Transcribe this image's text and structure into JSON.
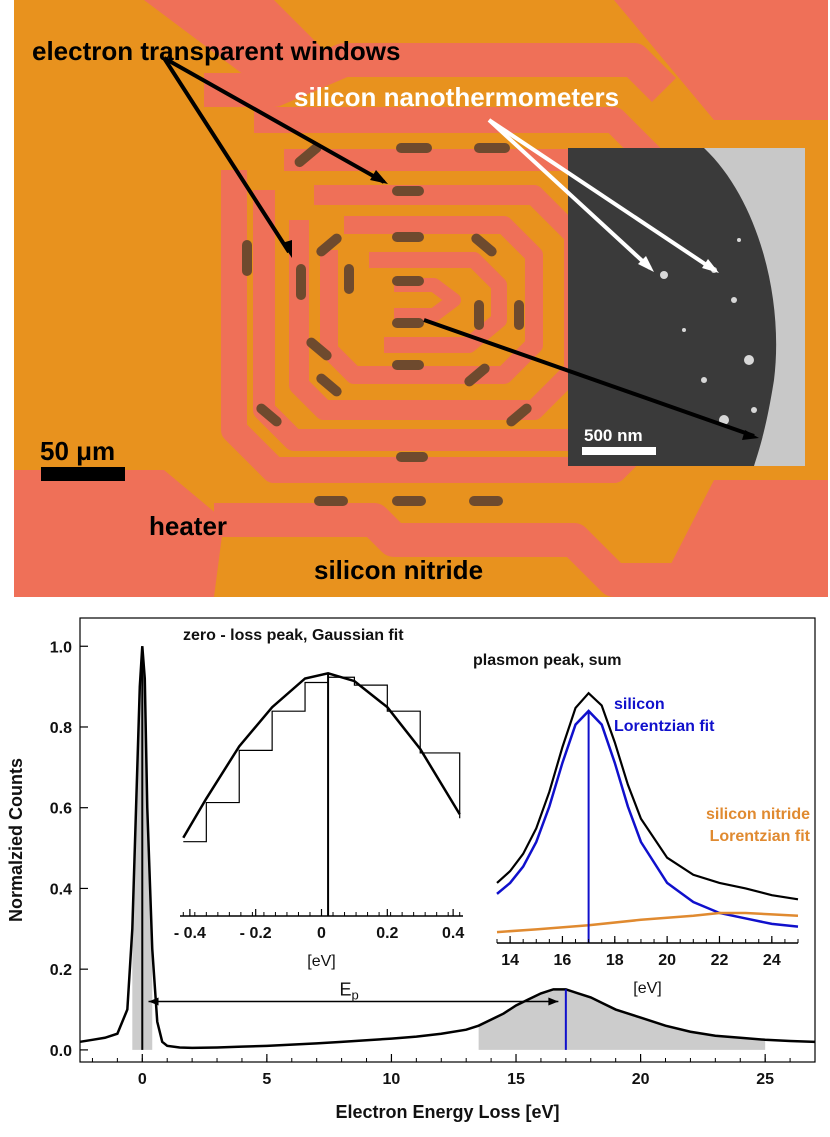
{
  "micrograph": {
    "labels": {
      "windows": "electron transparent windows",
      "thermometers": "silicon nanothermometers",
      "heater": "heater",
      "nitride": "silicon nitride"
    },
    "scalebar_main": "50 μm",
    "scalebar_inset": "500 nm",
    "colors": {
      "nitride": "#e8921e",
      "heater": "#ef7058",
      "window": "#6e4a2e",
      "inset_bg": "#3a3a3a"
    }
  },
  "chart_data": [
    {
      "type": "area",
      "title": "",
      "xlabel": "Electron Energy Loss [eV]",
      "ylabel": "Normalzied Counts",
      "xlim": [
        -2.5,
        27
      ],
      "ylim": [
        -0.03,
        1.07
      ],
      "xticks": [
        0,
        5,
        10,
        15,
        20,
        25
      ],
      "yticks": [
        0.0,
        0.2,
        0.4,
        0.6,
        0.8,
        1.0
      ],
      "series": [
        {
          "x": [
            -2.5,
            -2,
            -1.5,
            -1,
            -0.6,
            -0.4,
            -0.2,
            -0.1,
            0,
            0.1,
            0.2,
            0.4,
            0.6,
            0.8,
            1,
            1.5,
            2,
            3,
            4,
            5,
            6,
            7,
            8,
            9,
            10,
            11,
            12,
            13,
            13.5,
            14,
            14.5,
            15,
            15.5,
            16,
            16.5,
            17,
            17.5,
            18,
            18.5,
            19,
            19.5,
            20,
            21,
            22,
            23,
            24,
            25,
            26,
            27
          ],
          "y": [
            0.02,
            0.025,
            0.03,
            0.04,
            0.1,
            0.3,
            0.7,
            0.9,
            1.0,
            0.92,
            0.6,
            0.25,
            0.07,
            0.02,
            0.01,
            0.006,
            0.005,
            0.006,
            0.008,
            0.01,
            0.013,
            0.016,
            0.02,
            0.024,
            0.028,
            0.033,
            0.04,
            0.05,
            0.06,
            0.075,
            0.09,
            0.11,
            0.125,
            0.14,
            0.15,
            0.15,
            0.14,
            0.13,
            0.115,
            0.1,
            0.09,
            0.08,
            0.06,
            0.045,
            0.035,
            0.03,
            0.025,
            0.022,
            0.02
          ]
        }
      ],
      "shaded_ranges": [
        [
          -0.4,
          0.4
        ],
        [
          13.5,
          25
        ]
      ],
      "markers": [
        0,
        17
      ],
      "annotation": "E p",
      "colors": {
        "curve": "#000000",
        "shade": "#cccccc",
        "marker_plasmon": "#1010cc"
      }
    },
    {
      "type": "line",
      "title": "zero - loss peak, Gaussian fit",
      "xlabel": "[eV]",
      "ylabel": "",
      "xlim": [
        -0.43,
        0.43
      ],
      "ylim": [
        0,
        1.0
      ],
      "xticks": [
        -0.4,
        -0.2,
        0.0,
        0.2,
        0.4
      ],
      "peak_center": 0.02,
      "series": [
        {
          "x": [
            -0.42,
            -0.35,
            -0.25,
            -0.15,
            -0.05,
            0.02,
            0.1,
            0.2,
            0.3,
            0.42
          ],
          "y": [
            0.3,
            0.45,
            0.65,
            0.8,
            0.91,
            0.93,
            0.9,
            0.8,
            0.64,
            0.39
          ]
        }
      ]
    },
    {
      "type": "line",
      "title": "plasmon peak, sum",
      "xlabel": "[eV]",
      "ylabel": "",
      "xlim": [
        13.5,
        25
      ],
      "ylim": [
        0,
        1.0
      ],
      "xticks": [
        14,
        16,
        18,
        20,
        22,
        24
      ],
      "peak_center": 17,
      "series": [
        {
          "name": "silicon Lorentzian fit",
          "color": "#1010cc",
          "x": [
            13.5,
            14,
            14.5,
            15,
            15.5,
            16,
            16.5,
            17,
            17.5,
            18,
            18.5,
            19,
            20,
            21,
            22,
            23,
            24,
            25
          ],
          "y": [
            0.18,
            0.22,
            0.28,
            0.37,
            0.5,
            0.66,
            0.8,
            0.85,
            0.8,
            0.66,
            0.5,
            0.37,
            0.22,
            0.15,
            0.11,
            0.09,
            0.07,
            0.06
          ]
        },
        {
          "name": "silicon nitride Lorentzian fit",
          "color": "#e08a30",
          "x": [
            13.5,
            15,
            17,
            19,
            21,
            22,
            23,
            24,
            25
          ],
          "y": [
            0.04,
            0.05,
            0.065,
            0.085,
            0.1,
            0.11,
            0.11,
            0.105,
            0.1
          ]
        }
      ]
    }
  ]
}
